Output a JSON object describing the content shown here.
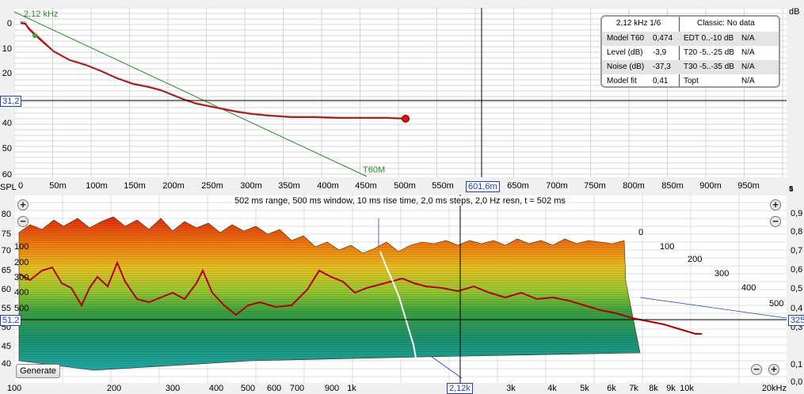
{
  "decay_plot": {
    "unit_top": "dB",
    "freq_marker": "2,12 kHz",
    "y_ticks": [
      "0",
      "10",
      "20",
      "30",
      "40",
      "50",
      "60"
    ],
    "y_cursor": "31,2",
    "x_ticks": [
      "0",
      "50m",
      "100m",
      "150m",
      "200m",
      "250m",
      "300m",
      "350m",
      "400m",
      "450m",
      "500m",
      "550m",
      "650m",
      "700m",
      "750m",
      "800m",
      "850m",
      "900m",
      "950m"
    ],
    "x_cursor": "601,6m",
    "x_left": "SPL",
    "x_unit": "s",
    "fit_label": "T60M",
    "colors": {
      "curve": "#b00000",
      "fit": "#2a8a2a",
      "cursor": "#000000",
      "marker": "#2040c0"
    }
  },
  "info_box": {
    "header_left": "2,12 kHz 1/6",
    "header_right": "Classic: No data",
    "rows": [
      {
        "l1": "Model T60",
        "v1": "0,474",
        "l2": "EDT  0..-10 dB",
        "v2": "N/A"
      },
      {
        "l1": "Level (dB)",
        "v1": "-3,9",
        "l2": "T20 -5..-25 dB",
        "v2": "N/A"
      },
      {
        "l1": "Noise (dB)",
        "v1": "-37,3",
        "l2": "T30 -5..-35 dB",
        "v2": "N/A"
      },
      {
        "l1": "Model fit",
        "v1": "0,41",
        "l2": "Topt",
        "v2": "N/A"
      }
    ]
  },
  "waterfall": {
    "title": "502 ms range, 500 ms window, 10 ms rise time, 2,0 ms steps,  2,0 Hz resn, t = 502 ms",
    "y_ticks": [
      "80",
      "75",
      "70",
      "65",
      "60",
      "55",
      "50",
      "45",
      "40"
    ],
    "y_cursor": "51,2",
    "right_ticks": [
      "0,9",
      "0,8",
      "0,7",
      "0,6",
      "0,5",
      "0,4",
      "0,3",
      "0,2",
      "0,1",
      "0,0"
    ],
    "right_cursor": "325",
    "right_unit": "s",
    "depth_labels_left": [
      "100",
      "200",
      "300",
      "400",
      "500"
    ],
    "depth_labels_right": [
      "0",
      "100",
      "200",
      "300",
      "400",
      "500"
    ],
    "x_ticks": [
      "100",
      "200",
      "300",
      "400",
      "500",
      "600",
      "700",
      "900",
      "1k",
      "3k",
      "4k",
      "5k",
      "6k",
      "7k",
      "8k",
      "9k",
      "10k",
      "20kHz"
    ],
    "x_cursor": "2,12k",
    "generate_label": "Generate"
  }
}
